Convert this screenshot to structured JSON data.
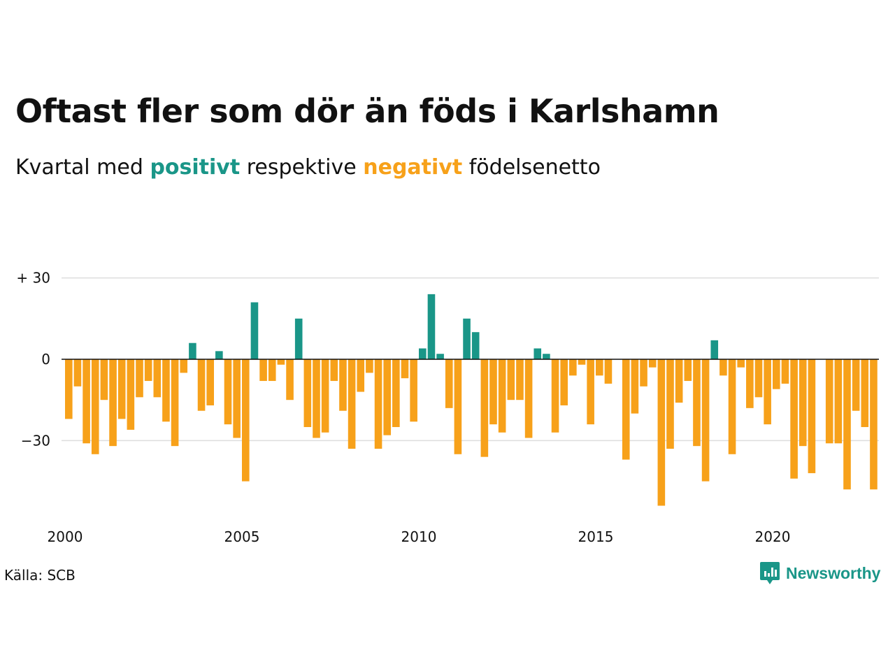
{
  "title": "Oftast fler som dör än föds i Karlshamn",
  "subtitle": {
    "prefix": "Kvartal med",
    "positive_word": "positivt",
    "middle": "respektive",
    "negative_word": "negativt",
    "suffix": "födelsenetto"
  },
  "colors": {
    "positive": "#1a9688",
    "negative": "#f7a11a",
    "gridline": "#dddddd",
    "axis": "#111111",
    "text": "#111111"
  },
  "source": "Källa: SCB",
  "brand": {
    "name": "Newsworthy",
    "icon": "newsworthy-logo-icon"
  },
  "chart_data": {
    "type": "bar",
    "x_start": 2000,
    "x_unit": "quarter",
    "y_ticks": [
      {
        "value": 30,
        "label": "+ 30"
      },
      {
        "value": 0,
        "label": "0"
      },
      {
        "value": -30,
        "label": "−30"
      }
    ],
    "x_ticks": [
      {
        "value": 2000,
        "label": "2000"
      },
      {
        "value": 2005,
        "label": "2005"
      },
      {
        "value": 2010,
        "label": "2010"
      },
      {
        "value": 2015,
        "label": "2015"
      },
      {
        "value": 2020,
        "label": "2020"
      }
    ],
    "ylim": [
      -54,
      30
    ],
    "grid": true,
    "values": [
      -22,
      -10,
      -31,
      -35,
      -15,
      -32,
      -22,
      -26,
      -14,
      -8,
      -14,
      -23,
      -32,
      -5,
      6,
      -19,
      -17,
      3,
      -24,
      -29,
      -45,
      21,
      -8,
      -8,
      -2,
      -15,
      15,
      -25,
      -29,
      -27,
      -8,
      -19,
      -33,
      -12,
      -5,
      -33,
      -28,
      -25,
      -7,
      -23,
      4,
      24,
      2,
      -18,
      -35,
      15,
      10,
      -36,
      -24,
      -27,
      -15,
      -15,
      -29,
      4,
      2,
      -27,
      -17,
      -6,
      -2,
      -24,
      -6,
      -9,
      0,
      -37,
      -20,
      -10,
      -3,
      -54,
      -33,
      -16,
      -8,
      -32,
      -45,
      7,
      -6,
      -35,
      -3,
      -18,
      -14,
      -24,
      -11,
      -9,
      -44,
      -32,
      -42,
      0,
      -31,
      -31,
      -48,
      -19,
      -25,
      -48
    ]
  }
}
